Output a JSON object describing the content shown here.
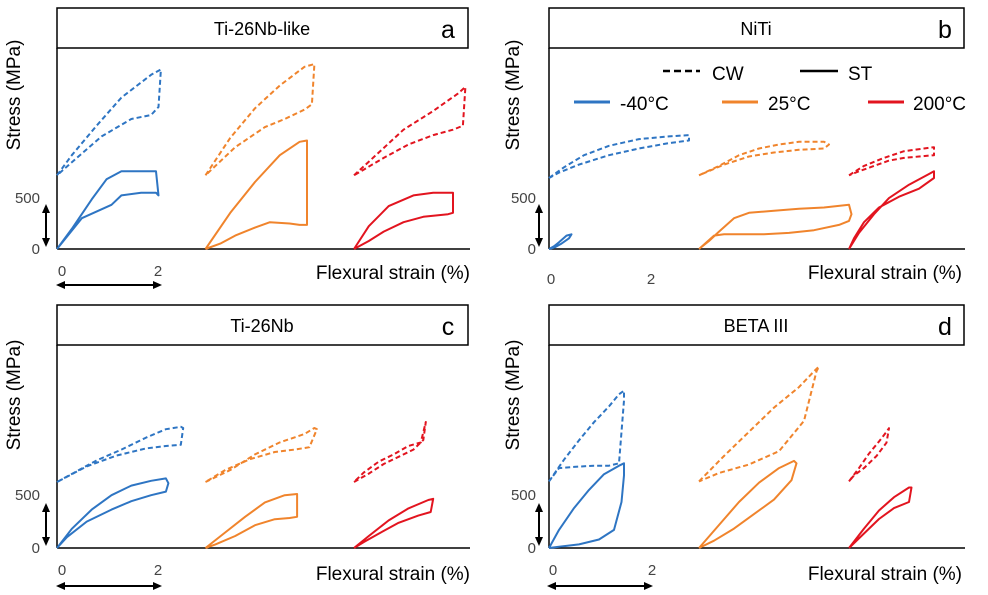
{
  "colors": {
    "temp_m40": "#2E75C3",
    "temp_25": "#F0842C",
    "temp_200": "#E2141F",
    "axis": "#000000",
    "header_border": "#000000"
  },
  "legend": {
    "cw_label": "CW",
    "st_label": "ST",
    "temp_labels": [
      "-40°C",
      "25°C",
      "200°C"
    ]
  },
  "chart_data": [
    {
      "type": "line",
      "panel_letter": "a",
      "title": "Ti-26Nb-like",
      "ylabel": "Stress (MPa)",
      "xlabel": "Flexural strain (%)",
      "y_ticks": [
        "0",
        "500"
      ],
      "x_ticks": [
        "0",
        "2"
      ],
      "series": [
        {
          "temperature": "-40°C",
          "condition": "CW",
          "x": [
            0.0,
            0.3,
            0.8,
            1.3,
            1.9,
            2.1,
            2.05,
            1.9,
            1.5,
            0.9,
            0.4,
            0.0
          ],
          "y": [
            550,
            700,
            920,
            1130,
            1300,
            1340,
            1060,
            1000,
            970,
            840,
            680,
            550
          ]
        },
        {
          "temperature": "-40°C",
          "condition": "ST",
          "x": [
            0.0,
            0.3,
            0.7,
            1.0,
            1.3,
            2.0,
            2.05,
            2.0,
            1.7,
            1.3,
            1.1,
            0.5,
            0.0
          ],
          "y": [
            0,
            150,
            370,
            520,
            580,
            580,
            400,
            420,
            420,
            400,
            330,
            230,
            0
          ]
        },
        {
          "temperature": "25°C",
          "condition": "CW",
          "x": [
            3.0,
            3.5,
            4.0,
            4.5,
            5.0,
            5.2,
            5.15,
            5.0,
            4.6,
            4.2,
            3.6,
            3.0
          ],
          "y": [
            550,
            830,
            1050,
            1220,
            1360,
            1380,
            1080,
            1040,
            970,
            910,
            760,
            550
          ]
        },
        {
          "temperature": "25°C",
          "condition": "ST",
          "x": [
            3.0,
            3.5,
            4.0,
            4.5,
            4.9,
            5.05,
            5.05,
            4.9,
            4.7,
            4.3,
            4.0,
            3.6,
            3.3,
            3.0
          ],
          "y": [
            0,
            270,
            500,
            700,
            800,
            810,
            180,
            180,
            190,
            200,
            160,
            100,
            40,
            0
          ]
        },
        {
          "temperature": "200°C",
          "condition": "CW",
          "x": [
            6.0,
            6.5,
            7.0,
            7.6,
            8.1,
            8.25,
            8.2,
            8.0,
            7.6,
            7.1,
            6.6,
            6.0
          ],
          "y": [
            550,
            720,
            890,
            1030,
            1160,
            1210,
            920,
            890,
            850,
            780,
            680,
            550
          ]
        },
        {
          "temperature": "200°C",
          "condition": "ST",
          "x": [
            6.0,
            6.3,
            6.7,
            7.2,
            7.6,
            8.0,
            8.0,
            7.9,
            7.4,
            7.0,
            6.6,
            6.3,
            6.0
          ],
          "y": [
            0,
            170,
            320,
            400,
            420,
            420,
            270,
            260,
            240,
            200,
            130,
            60,
            0
          ]
        }
      ]
    },
    {
      "type": "line",
      "panel_letter": "b",
      "title": "NiTi",
      "ylabel": "Stress (MPa)",
      "xlabel": "Flexural strain (%)",
      "y_ticks": [
        "0",
        "500"
      ],
      "x_ticks": [
        "0",
        "2"
      ],
      "series": [
        {
          "temperature": "-40°C",
          "condition": "CW",
          "x": [
            0.0,
            0.3,
            0.7,
            1.2,
            1.8,
            2.4,
            2.8,
            2.8,
            2.4,
            1.8,
            1.2,
            0.6,
            0.2,
            0.0
          ],
          "y": [
            530,
            610,
            700,
            770,
            820,
            840,
            850,
            810,
            790,
            750,
            700,
            630,
            570,
            530
          ]
        },
        {
          "temperature": "-40°C",
          "condition": "ST",
          "x": [
            0.0,
            0.1,
            0.2,
            0.35,
            0.45,
            0.4,
            0.25,
            0.1,
            0.0
          ],
          "y": [
            0,
            20,
            50,
            100,
            110,
            80,
            40,
            10,
            0
          ]
        },
        {
          "temperature": "25°C",
          "condition": "CW",
          "x": [
            3.0,
            3.4,
            3.8,
            4.2,
            4.6,
            5.0,
            5.5,
            5.6,
            5.5,
            5.0,
            4.5,
            4.0,
            3.5,
            3.0
          ],
          "y": [
            550,
            620,
            700,
            750,
            780,
            800,
            800,
            780,
            750,
            740,
            720,
            690,
            630,
            550
          ]
        },
        {
          "temperature": "25°C",
          "condition": "ST",
          "x": [
            3.0,
            3.2,
            3.4,
            3.7,
            4.0,
            4.5,
            5.0,
            5.5,
            6.0,
            6.05,
            6.0,
            5.8,
            5.3,
            4.8,
            4.3,
            3.9,
            3.5,
            3.3,
            3.0
          ],
          "y": [
            0,
            60,
            130,
            230,
            270,
            285,
            300,
            310,
            330,
            260,
            210,
            180,
            140,
            120,
            110,
            110,
            110,
            100,
            0
          ]
        },
        {
          "temperature": "200°C",
          "condition": "CW",
          "x": [
            6.0,
            6.3,
            6.7,
            7.1,
            7.5,
            7.7,
            7.7,
            7.4,
            7.1,
            6.8,
            6.5,
            6.2,
            6.0
          ],
          "y": [
            550,
            620,
            680,
            730,
            750,
            760,
            700,
            690,
            680,
            660,
            620,
            580,
            550
          ]
        },
        {
          "temperature": "200°C",
          "condition": "ST",
          "x": [
            6.0,
            6.2,
            6.5,
            6.8,
            7.2,
            7.6,
            7.7,
            7.7,
            7.4,
            7.0,
            6.6,
            6.3,
            6.1,
            6.0
          ],
          "y": [
            0,
            120,
            260,
            380,
            480,
            560,
            580,
            530,
            450,
            390,
            310,
            200,
            80,
            0
          ]
        }
      ]
    },
    {
      "type": "line",
      "panel_letter": "c",
      "title": "Ti-26Nb",
      "ylabel": "Stress (MPa)",
      "xlabel": "Flexural strain (%)",
      "y_ticks": [
        "0",
        "500"
      ],
      "x_ticks": [
        "0",
        "2"
      ],
      "series": [
        {
          "temperature": "-40°C",
          "condition": "CW",
          "x": [
            0.0,
            0.4,
            0.8,
            1.3,
            1.8,
            2.2,
            2.5,
            2.55,
            2.5,
            2.2,
            1.8,
            1.2,
            0.6,
            0.0
          ],
          "y": [
            550,
            640,
            730,
            820,
            920,
            990,
            1010,
            1000,
            860,
            850,
            830,
            770,
            680,
            550
          ]
        },
        {
          "temperature": "-40°C",
          "condition": "ST",
          "x": [
            0.0,
            0.3,
            0.7,
            1.1,
            1.5,
            1.9,
            2.2,
            2.25,
            2.2,
            1.9,
            1.5,
            1.1,
            0.6,
            0.2,
            0.0
          ],
          "y": [
            0,
            160,
            320,
            440,
            520,
            560,
            580,
            540,
            470,
            440,
            390,
            320,
            220,
            90,
            0
          ]
        },
        {
          "temperature": "25°C",
          "condition": "CW",
          "x": [
            3.0,
            3.5,
            4.0,
            4.5,
            5.0,
            5.2,
            5.25,
            5.1,
            4.8,
            4.4,
            3.9,
            3.4,
            3.0
          ],
          "y": [
            550,
            650,
            780,
            880,
            950,
            1000,
            990,
            840,
            820,
            800,
            740,
            650,
            550
          ]
        },
        {
          "temperature": "25°C",
          "condition": "ST",
          "x": [
            3.0,
            3.4,
            3.8,
            4.2,
            4.6,
            4.85,
            4.85,
            4.7,
            4.4,
            4.0,
            3.6,
            3.2,
            3.0
          ],
          "y": [
            0,
            130,
            260,
            380,
            440,
            450,
            260,
            250,
            240,
            190,
            100,
            30,
            0
          ]
        },
        {
          "temperature": "200°C",
          "condition": "CW",
          "x": [
            6.0,
            6.3,
            6.6,
            6.9,
            7.2,
            7.4,
            7.45,
            7.35,
            7.1,
            6.8,
            6.5,
            6.2,
            6.0
          ],
          "y": [
            550,
            620,
            700,
            760,
            820,
            900,
            1050,
            880,
            850,
            780,
            720,
            630,
            550
          ]
        },
        {
          "temperature": "200°C",
          "condition": "ST",
          "x": [
            6.0,
            6.3,
            6.7,
            7.1,
            7.5,
            7.6,
            7.55,
            7.3,
            6.9,
            6.5,
            6.2,
            6.0
          ],
          "y": [
            0,
            100,
            230,
            330,
            400,
            410,
            300,
            270,
            210,
            120,
            50,
            0
          ]
        }
      ]
    },
    {
      "type": "line",
      "panel_letter": "d",
      "title": "BETA III",
      "ylabel": "Stress (MPa)",
      "xlabel": "Flexural strain (%)",
      "y_ticks": [
        "0",
        "500"
      ],
      "x_ticks": [
        "0",
        "2"
      ],
      "series": [
        {
          "temperature": "-40°C",
          "condition": "CW",
          "x": [
            0.0,
            0.3,
            0.6,
            0.9,
            1.2,
            1.4,
            1.5,
            1.5,
            1.4,
            1.2,
            0.9,
            0.5,
            0.2,
            0.0
          ],
          "y": [
            550,
            730,
            890,
            1040,
            1170,
            1270,
            1300,
            1220,
            700,
            680,
            680,
            670,
            660,
            550
          ]
        },
        {
          "temperature": "-40°C",
          "condition": "ST",
          "x": [
            0.0,
            0.2,
            0.5,
            0.8,
            1.1,
            1.4,
            1.5,
            1.5,
            1.45,
            1.3,
            1.0,
            0.6,
            0.2,
            0.0
          ],
          "y": [
            0,
            150,
            330,
            480,
            610,
            680,
            700,
            600,
            380,
            150,
            70,
            30,
            10,
            0
          ]
        },
        {
          "temperature": "25°C",
          "condition": "CW",
          "x": [
            3.0,
            3.5,
            4.0,
            4.5,
            5.0,
            5.3,
            5.4,
            5.35,
            5.1,
            4.6,
            4.0,
            3.4,
            3.0
          ],
          "y": [
            550,
            760,
            960,
            1160,
            1330,
            1460,
            1500,
            1460,
            1050,
            800,
            690,
            620,
            550
          ]
        },
        {
          "temperature": "25°C",
          "condition": "ST",
          "x": [
            3.0,
            3.4,
            3.8,
            4.2,
            4.6,
            4.9,
            4.95,
            4.85,
            4.5,
            4.1,
            3.7,
            3.3,
            3.0
          ],
          "y": [
            0,
            190,
            380,
            540,
            660,
            720,
            700,
            560,
            400,
            280,
            160,
            60,
            0
          ]
        },
        {
          "temperature": "200°C",
          "condition": "CW",
          "x": [
            6.0,
            6.2,
            6.4,
            6.6,
            6.75,
            6.8,
            6.75,
            6.55,
            6.3,
            6.1,
            6.0
          ],
          "y": [
            550,
            660,
            780,
            880,
            960,
            990,
            870,
            760,
            660,
            600,
            550
          ]
        },
        {
          "temperature": "200°C",
          "condition": "ST",
          "x": [
            6.0,
            6.3,
            6.6,
            6.9,
            7.2,
            7.25,
            7.2,
            6.9,
            6.6,
            6.3,
            6.0
          ],
          "y": [
            0,
            160,
            310,
            420,
            500,
            500,
            380,
            330,
            240,
            120,
            0
          ]
        }
      ]
    }
  ]
}
